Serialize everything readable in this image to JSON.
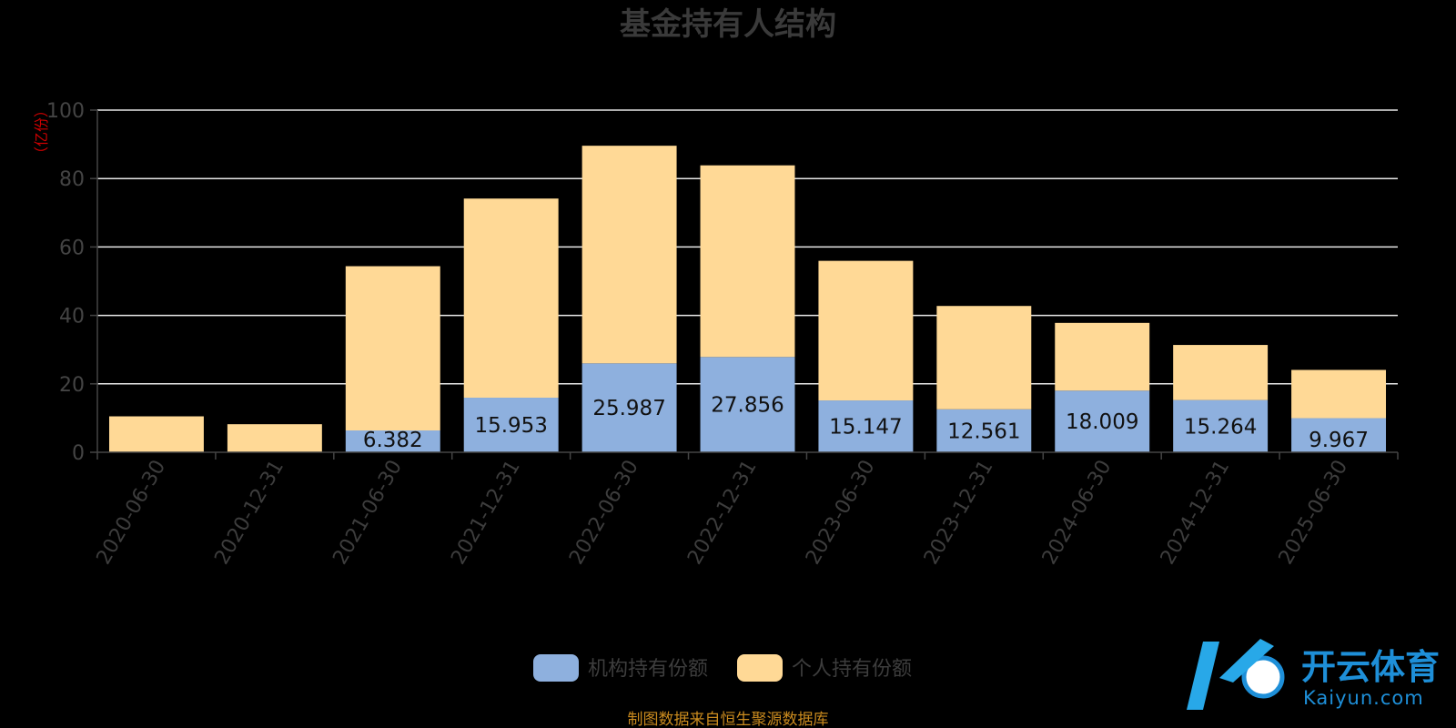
{
  "chart_data": {
    "type": "bar",
    "stacked": true,
    "title": "基金持有人结构",
    "ylabel": "（亿份）",
    "ylim": [
      0,
      100
    ],
    "yticks": [
      0,
      20,
      40,
      60,
      80,
      100
    ],
    "grid": true,
    "categories": [
      "2020-06-30",
      "2020-12-31",
      "2021-06-30",
      "2021-12-31",
      "2022-06-30",
      "2022-12-31",
      "2023-06-30",
      "2023-12-31",
      "2024-06-30",
      "2024-12-31",
      "2025-06-30"
    ],
    "series": [
      {
        "name": "机构持有份额",
        "color": "#8eb0de",
        "values": [
          0,
          0,
          6.382,
          15.953,
          25.987,
          27.856,
          15.147,
          12.561,
          18.009,
          15.264,
          9.967
        ],
        "labels": [
          "",
          "",
          "6.382",
          "15.953",
          "25.987",
          "27.856",
          "15.147",
          "12.561",
          "18.009",
          "15.264",
          "9.967"
        ]
      },
      {
        "name": "个人持有份额",
        "color": "#ffd996",
        "values": [
          10.5,
          8.2,
          48.0,
          58.2,
          63.6,
          56.0,
          40.8,
          30.2,
          19.8,
          16.1,
          14.1
        ]
      }
    ],
    "legend_position": "bottom-center"
  },
  "source_note": "制图数据来自恒生聚源数据库",
  "watermark": {
    "brand_cn": "开云体育",
    "brand_en": "Kaiyun.com"
  }
}
